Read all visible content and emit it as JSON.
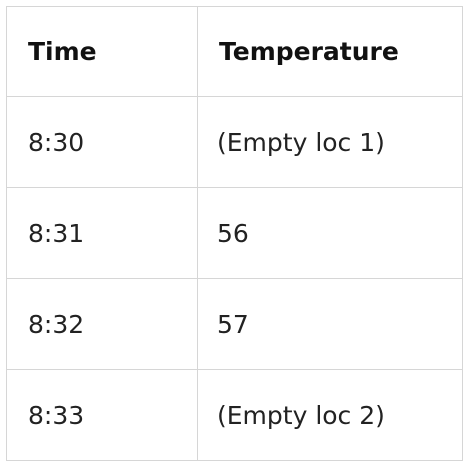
{
  "table": {
    "headers": [
      "Time",
      "Temperature"
    ],
    "rows": [
      {
        "time": "8:30",
        "temperature": "(Empty loc 1)"
      },
      {
        "time": "8:31",
        "temperature": "56"
      },
      {
        "time": "8:32",
        "temperature": "57"
      },
      {
        "time": "8:33",
        "temperature": "(Empty loc 2)"
      }
    ]
  },
  "colors": {
    "border": "#d6d6d6",
    "text": "#1a1a1a",
    "background": "#ffffff"
  }
}
